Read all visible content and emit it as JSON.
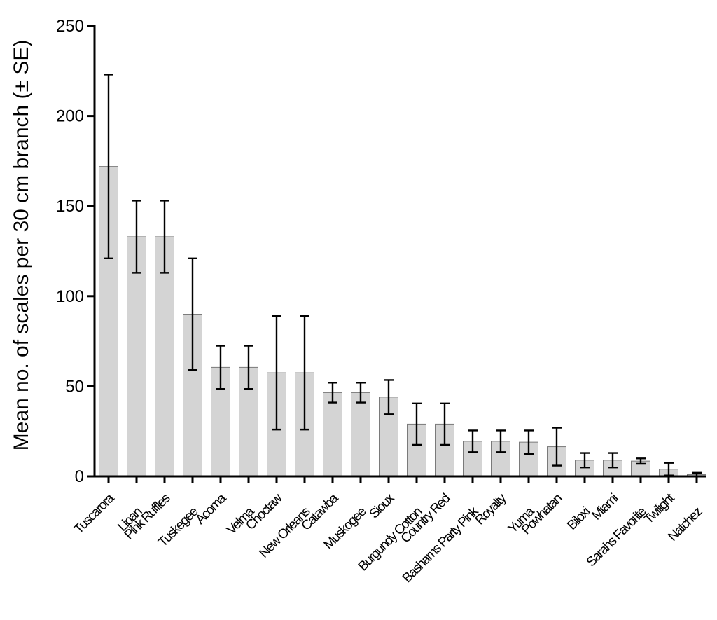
{
  "chart_data": {
    "type": "bar",
    "title": "",
    "xlabel": "",
    "ylabel": "Mean no. of scales per 30 cm branch (± SE)",
    "ylim": [
      0,
      250
    ],
    "yticks": [
      "0",
      "50",
      "100",
      "150",
      "200",
      "250"
    ],
    "grid": false,
    "legend": "none",
    "categories": [
      "Tuscarora",
      "Lipan",
      "Pink Ruffles",
      "Tuskegee",
      "Acoma",
      "Velma",
      "Choctaw",
      "New Orleans",
      "Catawba",
      "Muskogee",
      "Sioux",
      "Burgundy Cotton",
      "Country Red",
      "Bashams Party Pink",
      "Royalty",
      "Yuma",
      "Powhatan",
      "Biloxi",
      "Miami",
      "Sarahs Favorite",
      "Twilight",
      "Natchez"
    ],
    "series": [
      {
        "values": [
          172,
          133,
          133,
          90,
          60.5,
          60.5,
          57.5,
          57.5,
          46.5,
          46.5,
          44,
          29,
          29,
          19.5,
          19.5,
          19,
          16.5,
          9,
          9,
          8.5,
          4,
          1
        ],
        "error": [
          51,
          20,
          20,
          31,
          12,
          12,
          31.5,
          31.5,
          5.5,
          5.5,
          9.5,
          11.5,
          11.5,
          6,
          6,
          6.5,
          10.5,
          4,
          4,
          1.5,
          3.5,
          1
        ]
      }
    ],
    "colors": {
      "bar_fill": "#d4d4d4",
      "bar_stroke": "#7a7a7a",
      "axis": "#000000"
    }
  }
}
